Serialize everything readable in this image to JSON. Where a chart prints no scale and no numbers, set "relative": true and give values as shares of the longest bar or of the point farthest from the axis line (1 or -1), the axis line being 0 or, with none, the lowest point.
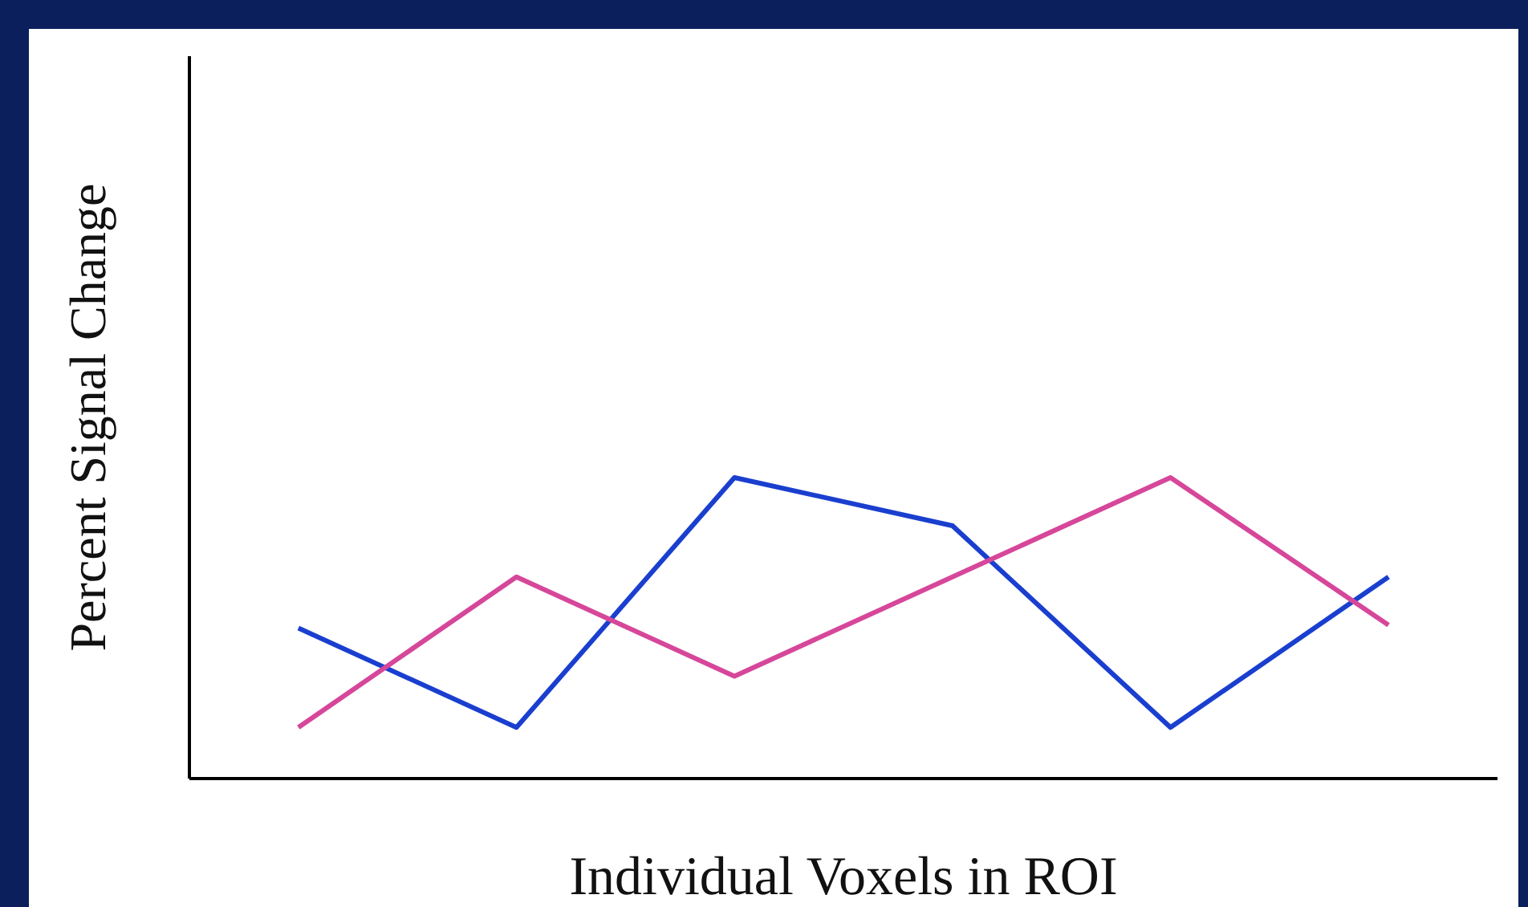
{
  "chart_data": {
    "type": "line",
    "relative": true,
    "xlabel": "Individual Voxels in ROI",
    "ylabel": "Percent Signal Change",
    "categories": [
      null,
      null,
      null,
      null,
      null,
      null
    ],
    "grid": false,
    "legend": false,
    "marker": "none",
    "line_style": "solid",
    "series": [
      {
        "color": "#1a3fcf",
        "values": [
          0.5,
          0.17,
          1,
          0.84,
          0.17,
          0.67
        ]
      },
      {
        "color": "#d6479a",
        "values": [
          0.17,
          0.67,
          0.34,
          0.67,
          1,
          0.51
        ]
      }
    ]
  }
}
